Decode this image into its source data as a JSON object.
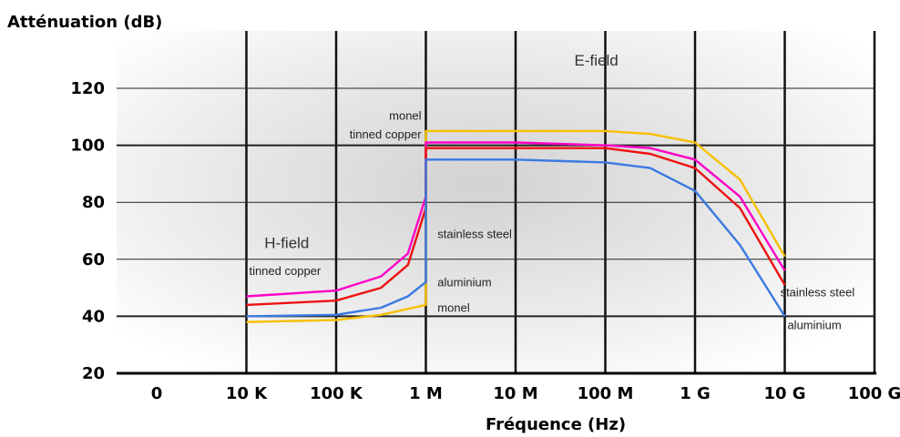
{
  "chart_data": {
    "type": "line",
    "title": "",
    "ylabel": "Atténuation (dB)",
    "xlabel": "Fréquence (Hz)",
    "ylim": [
      20,
      130
    ],
    "x_scale": "log",
    "x_ticks": [
      {
        "label": "0",
        "exp": 3
      },
      {
        "label": "10 K",
        "exp": 4
      },
      {
        "label": "100 K",
        "exp": 5
      },
      {
        "label": "1 M",
        "exp": 6
      },
      {
        "label": "10 M",
        "exp": 7
      },
      {
        "label": "100 M",
        "exp": 8
      },
      {
        "label": "1 G",
        "exp": 9
      },
      {
        "label": "10 G",
        "exp": 10
      },
      {
        "label": "100 G",
        "exp": 11
      }
    ],
    "y_ticks": [
      20,
      40,
      60,
      80,
      100,
      120
    ],
    "grid": true,
    "regions": [
      {
        "label": "H-field",
        "x_exp": 4.45,
        "y": 64
      },
      {
        "label": "E-field",
        "x_exp": 7.9,
        "y": 128
      }
    ],
    "series": [
      {
        "name": "monel",
        "color": "#f6c000",
        "points": [
          [
            4,
            38
          ],
          [
            5,
            38.7
          ],
          [
            5.5,
            40.5
          ],
          [
            6,
            44
          ],
          [
            6,
            105
          ],
          [
            7,
            105
          ],
          [
            8,
            105
          ],
          [
            8.5,
            104
          ],
          [
            9,
            101
          ],
          [
            9.5,
            88
          ],
          [
            10,
            61
          ]
        ]
      },
      {
        "name": "tinned copper",
        "color": "#ff00c8",
        "points": [
          [
            4,
            47
          ],
          [
            5,
            49
          ],
          [
            5.5,
            54
          ],
          [
            5.8,
            62
          ],
          [
            6,
            82
          ],
          [
            6,
            101
          ],
          [
            7,
            101
          ],
          [
            8,
            100
          ],
          [
            8.5,
            99
          ],
          [
            9,
            95
          ],
          [
            9.5,
            82
          ],
          [
            10,
            56
          ]
        ]
      },
      {
        "name": "stainless steel",
        "color": "#ee1111",
        "points": [
          [
            4,
            44
          ],
          [
            5,
            45.5
          ],
          [
            5.5,
            50
          ],
          [
            5.8,
            58
          ],
          [
            6,
            78
          ],
          [
            6,
            99
          ],
          [
            7,
            99
          ],
          [
            8,
            99
          ],
          [
            8.5,
            97
          ],
          [
            9,
            92
          ],
          [
            9.5,
            78
          ],
          [
            10,
            51
          ]
        ]
      },
      {
        "name": "aluminium",
        "color": "#3a7ae0",
        "points": [
          [
            4,
            40
          ],
          [
            5,
            40.5
          ],
          [
            5.5,
            43
          ],
          [
            5.8,
            47
          ],
          [
            6,
            52
          ],
          [
            6,
            95
          ],
          [
            7,
            95
          ],
          [
            8,
            94
          ],
          [
            8.5,
            92
          ],
          [
            9,
            84
          ],
          [
            9.5,
            65
          ],
          [
            10,
            40
          ]
        ]
      }
    ],
    "annotations": [
      {
        "text": "monel",
        "x_exp": 5.95,
        "y": 109,
        "anchor": "end"
      },
      {
        "text": "tinned copper",
        "x_exp": 5.95,
        "y": 102.5,
        "anchor": "end"
      },
      {
        "text": "stainless steel",
        "x_exp": 6.13,
        "y": 67.5,
        "anchor": "start"
      },
      {
        "text": "tinned copper",
        "x_exp": 4.03,
        "y": 54.5,
        "anchor": "start"
      },
      {
        "text": "aluminium",
        "x_exp": 6.13,
        "y": 50.5,
        "anchor": "start"
      },
      {
        "text": "monel",
        "x_exp": 6.13,
        "y": 41.5,
        "anchor": "start"
      },
      {
        "text": "stainless steel",
        "x_exp": 9.95,
        "y": 47,
        "anchor": "start"
      },
      {
        "text": "aluminium",
        "x_exp": 10.03,
        "y": 35.5,
        "anchor": "start"
      }
    ]
  }
}
